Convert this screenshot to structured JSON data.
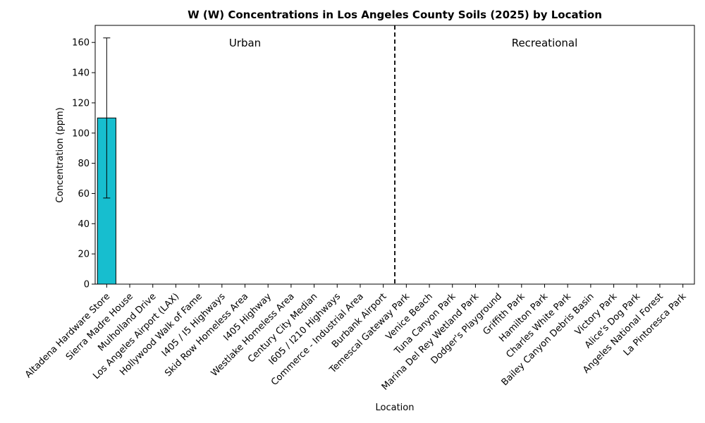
{
  "chart_data": {
    "type": "bar",
    "title": "W (W) Concentrations in Los Angeles County Soils (2025) by Location",
    "xlabel": "Location",
    "ylabel": "Concentration (ppm)",
    "ylim": [
      0,
      171.3
    ],
    "yticks": [
      0,
      20,
      40,
      60,
      80,
      100,
      120,
      140,
      160
    ],
    "grid": false,
    "categories": [
      "Altadena Hardware Store",
      "Sierra Madre House",
      "Mulholland Drive",
      "Los Angeles Airport (LAX)",
      "Hollywood Walk of Fame",
      "I405 / I5 Highways",
      "Skid Row Homeless Area",
      "I405 Highway",
      "Westlake Homeless Area",
      "Century City Median",
      "I605 / I210 Highways",
      "Commerce - Industrial Area",
      "Burbank Airport",
      "Temescal Gateway Park",
      "Venice Beach",
      "Tuna Canyon Park",
      "Marina Del Rey Wetland Park",
      "Dodger's Playground",
      "Griffith Park",
      "Hamilton Park",
      "Charles White Park",
      "Bailey Canyon Debris Basin",
      "Victory Park",
      "Alice's Dog Park",
      "Angeles National Forest",
      "La Pintoresca Park"
    ],
    "values": [
      110,
      0,
      0,
      0,
      0,
      0,
      0,
      0,
      0,
      0,
      0,
      0,
      0,
      0,
      0,
      0,
      0,
      0,
      0,
      0,
      0,
      0,
      0,
      0,
      0,
      0
    ],
    "errors": [
      53,
      0,
      0,
      0,
      0,
      0,
      0,
      0,
      0,
      0,
      0,
      0,
      0,
      0,
      0,
      0,
      0,
      0,
      0,
      0,
      0,
      0,
      0,
      0,
      0,
      0
    ],
    "bar_color": "#17becf",
    "divider_after_category": 12,
    "group_annotations": [
      {
        "label": "Urban",
        "center_category_range": [
          0,
          12
        ]
      },
      {
        "label": "Recreational",
        "center_category_range": [
          13,
          25
        ]
      }
    ]
  }
}
